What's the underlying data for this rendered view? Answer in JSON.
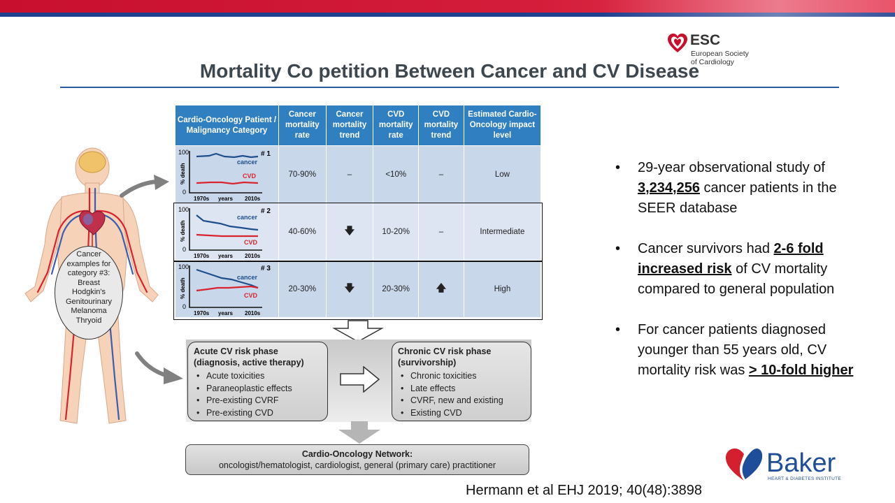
{
  "title": "Mortality Co petition Between Cancer and CV Disease",
  "esc_logo": {
    "name": "ESC",
    "line1": "European Society",
    "line2": "of Cardiology"
  },
  "table": {
    "headers": [
      "Cardio-Oncology Patient / Malignancy Category",
      "Cancer mortality rate",
      "Cancer mortality trend",
      "CVD mortality rate",
      "CVD mortality trend",
      "Estimated Cardio-Oncology impact level"
    ],
    "rows": [
      {
        "category": "# 1",
        "cancer_rate": "70-90%",
        "cancer_trend": "–",
        "cvd_rate": "<10%",
        "cvd_trend": "–",
        "impact": "Low"
      },
      {
        "category": "# 2",
        "cancer_rate": "40-60%",
        "cancer_trend": "down",
        "cvd_rate": "10-20%",
        "cvd_trend": "–",
        "impact": "Intermediate"
      },
      {
        "category": "# 3",
        "cancer_rate": "20-30%",
        "cancer_trend": "down",
        "cvd_rate": "20-30%",
        "cvd_trend": "up",
        "impact": "High"
      }
    ],
    "mini_chart": {
      "y_top": "100",
      "y_bottom": "0",
      "y_label": "% death",
      "x_start": "1970s",
      "x_mid": "years",
      "x_end": "2010s",
      "cancer_label": "cancer",
      "cvd_label": "CVD"
    }
  },
  "cancer_examples": {
    "line1": "Cancer",
    "line2": "examples for",
    "line3": "category #3:",
    "items": [
      "Breast",
      "Hodgkin's",
      "Genitourinary",
      "Melanoma",
      "Thryoid"
    ]
  },
  "acute_phase": {
    "title_line1": "Acute CV risk phase",
    "title_line2": "(diagnosis, active therapy)",
    "items": [
      "Acute toxicities",
      "Paraneoplastic effects",
      "Pre-existing CVRF",
      "Pre-existing CVD"
    ]
  },
  "chronic_phase": {
    "title_line1": "Chronic CV risk phase",
    "title_line2": "(survivorship)",
    "items": [
      "Chronic toxicities",
      "Late effects",
      "CVRF, new and existing",
      "Existing CVD"
    ]
  },
  "network": {
    "title": "Cardio-Oncology Network:",
    "subtitle": "oncologist/hematologist, cardiologist, general (primary care) practitioner"
  },
  "bullets": [
    {
      "pre": "29-year observational study of ",
      "bold": "3,234,256",
      "post": " cancer patients in the SEER database"
    },
    {
      "pre": "Cancer survivors had ",
      "bold": "2-6 fold increased risk",
      "post": " of CV mortality compared to general population"
    },
    {
      "pre": " For cancer patients diagnosed younger than 55 years old, CV mortality risk was ",
      "bold": "> 10-fold higher",
      "post": ""
    }
  ],
  "baker_logo": {
    "name": "Baker",
    "sub": "HEART & DIABETES INSTITUTE"
  },
  "citation": "Hermann et al EHJ 2019; 40(48):3898",
  "colors": {
    "header_blue": "#2f7fc1",
    "cancer_line": "#1f4e8c",
    "cvd_line": "#d9232e",
    "title_rule": "#2c5aa0"
  }
}
